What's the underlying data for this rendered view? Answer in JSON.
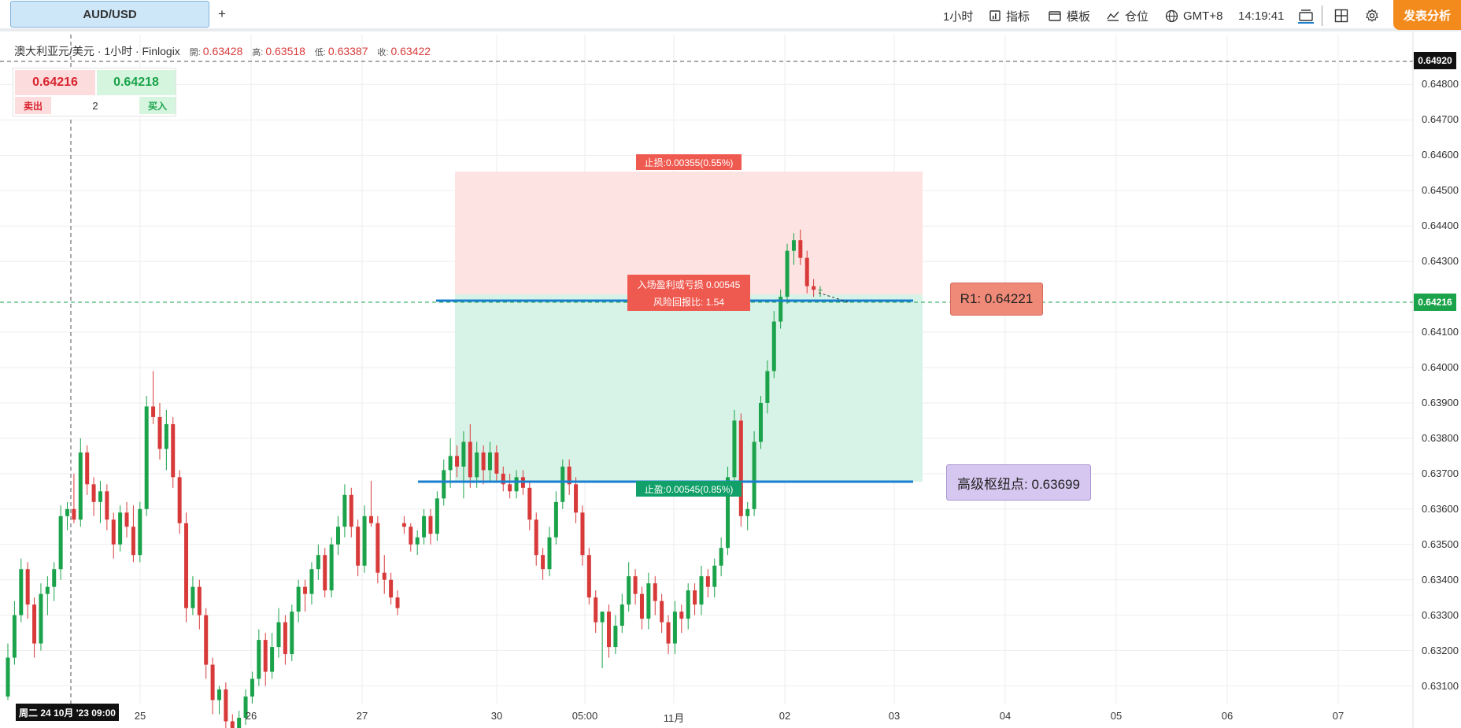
{
  "toolbar": {
    "symbol_tab": "AUD/USD",
    "add_label": "+",
    "interval": "1小时",
    "indicators": "指标",
    "templates": "模板",
    "positions": "仓位",
    "timezone": "GMT+8",
    "clock": "14:19:41",
    "publish": "发表分析"
  },
  "legend": {
    "title": "澳大利亚元/美元 · 1小时 · Finlogix",
    "open_key": "開:",
    "open": "0.63428",
    "high_key": "高:",
    "high": "0.63518",
    "low_key": "低:",
    "low": "0.63387",
    "close_key": "收:",
    "close": "0.63422"
  },
  "trade_panel": {
    "sell_price": "0.64216",
    "buy_price": "0.64218",
    "sell_label": "卖出",
    "quantity": "2",
    "buy_label": "买入"
  },
  "price_axis": {
    "ticks": [
      "0.64800",
      "0.64700",
      "0.64600",
      "0.64500",
      "0.64400",
      "0.64300",
      "0.64100",
      "0.64000",
      "0.63900",
      "0.63800",
      "0.63700",
      "0.63600",
      "0.63500",
      "0.63400",
      "0.63300",
      "0.63200",
      "0.63100"
    ],
    "crosshair_price": "0.64920",
    "last_price": "0.64216"
  },
  "time_axis": {
    "ticks": [
      "25",
      "26",
      "27",
      "30",
      "05:00",
      "11月",
      "02",
      "03",
      "04",
      "05",
      "06",
      "07"
    ],
    "crosshair_time": "周二 24 10月 '23 09:00"
  },
  "position_tool": {
    "stop_loss_label": "止损:0.00355(0.55%)",
    "entry_label_1": "入场盈利或亏损 0.00545",
    "entry_label_2": "风险回报比: 1.54",
    "take_profit_label": "止盈:0.00545(0.85%)"
  },
  "levels": {
    "r1_label": "R1: 0.64221",
    "pivot_label": "高级枢纽点: 0.63699"
  },
  "colors": {
    "up": "#1aa34a",
    "down": "#d83a3a",
    "accent": "#f38a1c",
    "level_line": "#1b7fd0"
  },
  "chart_data": {
    "type": "candlestick",
    "symbol": "AUD/USD",
    "interval": "1小时",
    "ylim": [
      0.6305,
      0.6495
    ],
    "candles": [
      [
        0.6307,
        0.6322,
        0.6306,
        0.6318
      ],
      [
        0.6318,
        0.6334,
        0.6316,
        0.633
      ],
      [
        0.633,
        0.6346,
        0.6328,
        0.6343
      ],
      [
        0.6343,
        0.6345,
        0.6329,
        0.6333
      ],
      [
        0.6333,
        0.6335,
        0.6318,
        0.6322
      ],
      [
        0.6322,
        0.6339,
        0.632,
        0.6336
      ],
      [
        0.6336,
        0.6341,
        0.633,
        0.6338
      ],
      [
        0.6338,
        0.6345,
        0.6334,
        0.6343
      ],
      [
        0.6343,
        0.6361,
        0.634,
        0.6358
      ],
      [
        0.6358,
        0.6362,
        0.6354,
        0.636
      ],
      [
        0.636,
        0.637,
        0.6356,
        0.6357
      ],
      [
        0.6357,
        0.638,
        0.6355,
        0.6376
      ],
      [
        0.6376,
        0.6378,
        0.6364,
        0.6367
      ],
      [
        0.6367,
        0.6369,
        0.6358,
        0.6362
      ],
      [
        0.6362,
        0.6368,
        0.6356,
        0.6365
      ],
      [
        0.6365,
        0.6367,
        0.6354,
        0.6357
      ],
      [
        0.6357,
        0.6359,
        0.6346,
        0.635
      ],
      [
        0.635,
        0.6361,
        0.6348,
        0.6359
      ],
      [
        0.6359,
        0.6362,
        0.6352,
        0.6355
      ],
      [
        0.6355,
        0.6361,
        0.6345,
        0.6347
      ],
      [
        0.6347,
        0.6362,
        0.6345,
        0.636
      ],
      [
        0.636,
        0.6392,
        0.6358,
        0.6389
      ],
      [
        0.6389,
        0.6399,
        0.6384,
        0.6386
      ],
      [
        0.6386,
        0.639,
        0.6374,
        0.6377
      ],
      [
        0.6377,
        0.6388,
        0.6371,
        0.6384
      ],
      [
        0.6384,
        0.6386,
        0.6366,
        0.6369
      ],
      [
        0.6369,
        0.6371,
        0.6353,
        0.6356
      ],
      [
        0.6356,
        0.6359,
        0.6328,
        0.6332
      ],
      [
        0.6332,
        0.6341,
        0.633,
        0.6338
      ],
      [
        0.6338,
        0.634,
        0.6326,
        0.633
      ],
      [
        0.633,
        0.6332,
        0.6312,
        0.6316
      ],
      [
        0.6316,
        0.6318,
        0.6302,
        0.6306
      ],
      [
        0.6306,
        0.631,
        0.6302,
        0.6309
      ],
      [
        0.6309,
        0.6311,
        0.6298,
        0.63
      ],
      [
        0.63,
        0.6302,
        0.629,
        0.6293
      ],
      [
        0.6293,
        0.6303,
        0.629,
        0.6301
      ],
      [
        0.6301,
        0.6309,
        0.6299,
        0.6307
      ],
      [
        0.6307,
        0.6314,
        0.6305,
        0.6312
      ],
      [
        0.6312,
        0.6326,
        0.631,
        0.6323
      ],
      [
        0.6323,
        0.6325,
        0.631,
        0.6314
      ],
      [
        0.6314,
        0.6325,
        0.6312,
        0.6321
      ],
      [
        0.6321,
        0.6332,
        0.6318,
        0.6328
      ],
      [
        0.6328,
        0.633,
        0.6316,
        0.6319
      ],
      [
        0.6319,
        0.6333,
        0.6317,
        0.6331
      ],
      [
        0.6331,
        0.634,
        0.6328,
        0.6338
      ],
      [
        0.6338,
        0.634,
        0.6331,
        0.6336
      ],
      [
        0.6336,
        0.6345,
        0.6333,
        0.6343
      ],
      [
        0.6343,
        0.635,
        0.634,
        0.6347
      ],
      [
        0.6347,
        0.6349,
        0.6335,
        0.6337
      ],
      [
        0.6337,
        0.6352,
        0.6335,
        0.635
      ],
      [
        0.635,
        0.6358,
        0.6347,
        0.6355
      ],
      [
        0.6355,
        0.6367,
        0.6352,
        0.6364
      ],
      [
        0.6364,
        0.6366,
        0.6352,
        0.6355
      ],
      [
        0.6355,
        0.6357,
        0.6341,
        0.6344
      ],
      [
        0.6344,
        0.6361,
        0.6342,
        0.6358
      ],
      [
        0.6358,
        0.6368,
        0.6355,
        0.6356
      ],
      [
        0.6356,
        0.6358,
        0.6339,
        0.6342
      ],
      [
        0.6342,
        0.6347,
        0.6336,
        0.634
      ],
      [
        0.634,
        0.6342,
        0.6333,
        0.6335
      ],
      [
        0.6335,
        0.6337,
        0.633,
        0.6332
      ],
      [
        0.6356,
        0.6358,
        0.6353,
        0.6355
      ],
      [
        0.6355,
        0.6356,
        0.6348,
        0.635
      ],
      [
        0.635,
        0.6354,
        0.6347,
        0.6352
      ],
      [
        0.6352,
        0.636,
        0.635,
        0.6358
      ],
      [
        0.6358,
        0.636,
        0.635,
        0.6353
      ],
      [
        0.6353,
        0.6365,
        0.6351,
        0.6363
      ],
      [
        0.6363,
        0.6374,
        0.6361,
        0.6371
      ],
      [
        0.6371,
        0.638,
        0.6366,
        0.6375
      ],
      [
        0.6375,
        0.6378,
        0.6369,
        0.6372
      ],
      [
        0.6372,
        0.6382,
        0.6363,
        0.6379
      ],
      [
        0.6379,
        0.6384,
        0.6366,
        0.6369
      ],
      [
        0.6369,
        0.6379,
        0.6366,
        0.6376
      ],
      [
        0.6376,
        0.6378,
        0.6367,
        0.6371
      ],
      [
        0.6371,
        0.6379,
        0.6368,
        0.6376
      ],
      [
        0.6376,
        0.6378,
        0.6368,
        0.637
      ],
      [
        0.637,
        0.6372,
        0.6365,
        0.6367
      ],
      [
        0.6367,
        0.637,
        0.6363,
        0.6365
      ],
      [
        0.6365,
        0.6371,
        0.6363,
        0.6369
      ],
      [
        0.6369,
        0.6371,
        0.6364,
        0.6366
      ],
      [
        0.6366,
        0.6368,
        0.6354,
        0.6357
      ],
      [
        0.6357,
        0.6359,
        0.6344,
        0.6347
      ],
      [
        0.6347,
        0.6349,
        0.634,
        0.6343
      ],
      [
        0.6343,
        0.6355,
        0.6341,
        0.6352
      ],
      [
        0.6352,
        0.6365,
        0.635,
        0.6362
      ],
      [
        0.6362,
        0.6374,
        0.636,
        0.6372
      ],
      [
        0.6372,
        0.6374,
        0.6364,
        0.6367
      ],
      [
        0.6367,
        0.6369,
        0.6356,
        0.6359
      ],
      [
        0.6359,
        0.6361,
        0.6344,
        0.6347
      ],
      [
        0.6347,
        0.6349,
        0.6333,
        0.6335
      ],
      [
        0.6335,
        0.6337,
        0.6325,
        0.6328
      ],
      [
        0.6328,
        0.6331,
        0.6315,
        0.6331
      ],
      [
        0.6331,
        0.6333,
        0.6318,
        0.6321
      ],
      [
        0.6321,
        0.633,
        0.6319,
        0.6327
      ],
      [
        0.6327,
        0.6336,
        0.6325,
        0.6333
      ],
      [
        0.6333,
        0.6345,
        0.6331,
        0.6341
      ],
      [
        0.6341,
        0.6343,
        0.6333,
        0.6336
      ],
      [
        0.6336,
        0.6338,
        0.6326,
        0.6329
      ],
      [
        0.6329,
        0.6342,
        0.6326,
        0.6339
      ],
      [
        0.6339,
        0.6341,
        0.633,
        0.6334
      ],
      [
        0.6334,
        0.6336,
        0.6325,
        0.6328
      ],
      [
        0.6328,
        0.633,
        0.6319,
        0.6322
      ],
      [
        0.6322,
        0.6334,
        0.6319,
        0.6331
      ],
      [
        0.6331,
        0.6333,
        0.6325,
        0.6329
      ],
      [
        0.6329,
        0.6339,
        0.6326,
        0.6337
      ],
      [
        0.6337,
        0.6339,
        0.633,
        0.6333
      ],
      [
        0.6333,
        0.6344,
        0.633,
        0.6341
      ],
      [
        0.6341,
        0.6343,
        0.6335,
        0.6338
      ],
      [
        0.6338,
        0.6346,
        0.6335,
        0.6344
      ],
      [
        0.6344,
        0.6352,
        0.6341,
        0.6349
      ],
      [
        0.6349,
        0.6372,
        0.6347,
        0.6369
      ],
      [
        0.6369,
        0.6388,
        0.6366,
        0.6385
      ],
      [
        0.6385,
        0.6387,
        0.6355,
        0.6358
      ],
      [
        0.6358,
        0.6362,
        0.6354,
        0.636
      ],
      [
        0.636,
        0.6382,
        0.6358,
        0.6379
      ],
      [
        0.6379,
        0.6392,
        0.6377,
        0.639
      ],
      [
        0.639,
        0.6402,
        0.6387,
        0.6399
      ],
      [
        0.6399,
        0.6416,
        0.6397,
        0.6413
      ],
      [
        0.6413,
        0.6422,
        0.6411,
        0.642
      ],
      [
        0.642,
        0.6435,
        0.6418,
        0.6433
      ],
      [
        0.6433,
        0.6438,
        0.6429,
        0.6436
      ],
      [
        0.6436,
        0.6439,
        0.6429,
        0.6431
      ],
      [
        0.6431,
        0.6433,
        0.6421,
        0.6423
      ],
      [
        0.6423,
        0.6425,
        0.642,
        0.6422
      ],
      [
        0.6422,
        0.6423,
        0.642,
        0.6422
      ]
    ],
    "horizontal_levels": [
      {
        "label": "R1",
        "price": 0.64221
      },
      {
        "label": "高级枢纽点",
        "price": 0.63699
      }
    ],
    "position": {
      "entry": 0.64216,
      "stop_loss": 0.64571,
      "take_profit": 0.63671
    }
  }
}
